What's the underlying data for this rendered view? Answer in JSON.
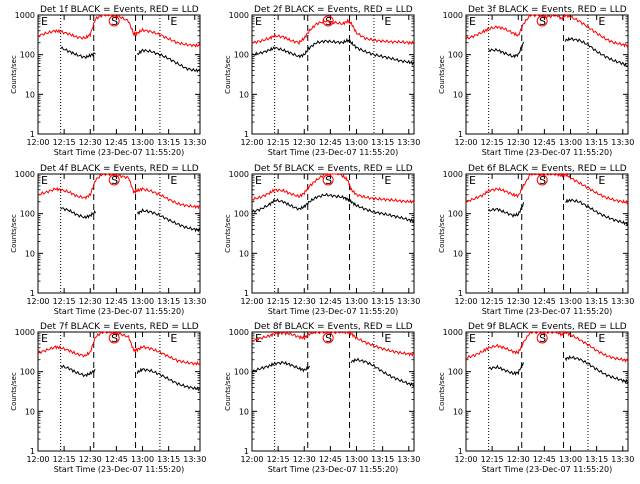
{
  "figure": {
    "xlabel": "Start Time (23-Dec-07 11:55:20)",
    "ylabel": "Counts/sec",
    "x_ticks": [
      "12:00",
      "12:15",
      "12:30",
      "12:45",
      "13:00",
      "13:15",
      "13:30"
    ],
    "y_ticks": [
      "1",
      "10",
      "100",
      "1000"
    ],
    "colors": {
      "events": "#000000",
      "lld": "#ff0000",
      "axes": "#000000",
      "background": "#ffffff"
    },
    "marker_labels": [
      "E",
      "S",
      "E"
    ]
  },
  "chart_data": [
    {
      "type": "line",
      "title": "Det 1f BLACK = Events, RED = LLD",
      "xlabel": "Start Time (23-Dec-07 11:55:20)",
      "ylabel": "Counts/sec",
      "log_y": true,
      "ylim": [
        1,
        1000
      ],
      "xlim": [
        "12:00",
        "13:33"
      ],
      "x": [
        "12:00",
        "12:05",
        "12:10",
        "12:13",
        "12:18",
        "12:22",
        "12:27",
        "12:30",
        "12:33",
        "12:37",
        "12:42",
        "12:47",
        "12:52",
        "12:55",
        "12:57",
        "13:00",
        "13:05",
        "13:10",
        "13:15",
        "13:20",
        "13:25",
        "13:30",
        "13:33"
      ],
      "series": [
        {
          "name": "LLD",
          "values": [
            300,
            350,
            400,
            380,
            330,
            280,
            260,
            320,
            800,
            1000,
            1000,
            900,
            700,
            330,
            350,
            420,
            380,
            320,
            250,
            200,
            180,
            170,
            170
          ]
        },
        {
          "name": "Events",
          "values": [
            null,
            null,
            null,
            150,
            120,
            100,
            85,
            95,
            110,
            null,
            null,
            null,
            null,
            null,
            100,
            130,
            120,
            100,
            80,
            60,
            45,
            40,
            40
          ]
        }
      ],
      "vlines_dotted": [
        "12:13",
        "13:10"
      ],
      "vlines_dashed": [
        "12:32",
        "12:56"
      ]
    },
    {
      "type": "line",
      "title": "Det 2f BLACK = Events, RED = LLD",
      "xlabel": "Start Time (23-Dec-07 11:55:20)",
      "ylabel": "Counts/sec",
      "log_y": true,
      "ylim": [
        1,
        1000
      ],
      "xlim": [
        "12:00",
        "13:33"
      ],
      "x": [
        "12:00",
        "12:05",
        "12:10",
        "12:13",
        "12:18",
        "12:22",
        "12:27",
        "12:30",
        "12:33",
        "12:37",
        "12:42",
        "12:47",
        "12:52",
        "12:55",
        "12:57",
        "13:00",
        "13:05",
        "13:10",
        "13:15",
        "13:20",
        "13:25",
        "13:30",
        "13:33"
      ],
      "series": [
        {
          "name": "LLD",
          "values": [
            200,
            220,
            260,
            300,
            280,
            230,
            200,
            260,
            400,
            600,
            700,
            650,
            600,
            700,
            620,
            350,
            260,
            230,
            220,
            210,
            210,
            200,
            200
          ]
        },
        {
          "name": "Events",
          "values": [
            100,
            110,
            130,
            150,
            130,
            110,
            90,
            100,
            150,
            200,
            220,
            210,
            200,
            230,
            200,
            150,
            120,
            100,
            90,
            80,
            70,
            65,
            60
          ]
        }
      ],
      "vlines_dotted": [
        "12:13",
        "13:10"
      ],
      "vlines_dashed": [
        "12:32",
        "12:56"
      ]
    },
    {
      "type": "line",
      "title": "Det 3f BLACK = Events, RED = LLD",
      "xlabel": "Start Time (23-Dec-07 11:55:20)",
      "ylabel": "Counts/sec",
      "log_y": true,
      "ylim": [
        1,
        1000
      ],
      "xlim": [
        "12:00",
        "13:33"
      ],
      "x": [
        "12:00",
        "12:05",
        "12:10",
        "12:13",
        "12:18",
        "12:22",
        "12:27",
        "12:30",
        "12:33",
        "12:37",
        "12:42",
        "12:47",
        "12:52",
        "12:55",
        "12:57",
        "13:00",
        "13:05",
        "13:10",
        "13:15",
        "13:20",
        "13:25",
        "13:30",
        "13:33"
      ],
      "series": [
        {
          "name": "LLD",
          "values": [
            250,
            300,
            380,
            450,
            500,
            450,
            350,
            300,
            600,
            1000,
            1000,
            900,
            1000,
            800,
            1000,
            900,
            700,
            500,
            350,
            250,
            200,
            180,
            170
          ]
        },
        {
          "name": "Events",
          "values": [
            null,
            null,
            null,
            130,
            130,
            110,
            90,
            100,
            200,
            null,
            null,
            null,
            null,
            null,
            230,
            250,
            230,
            180,
            120,
            90,
            70,
            60,
            50
          ]
        }
      ],
      "vlines_dotted": [
        "12:13",
        "13:10"
      ],
      "vlines_dashed": [
        "12:32",
        "12:56"
      ]
    },
    {
      "type": "line",
      "title": "Det 4f BLACK = Events, RED = LLD",
      "xlabel": "Start Time (23-Dec-07 11:55:20)",
      "ylabel": "Counts/sec",
      "log_y": true,
      "ylim": [
        1,
        1000
      ],
      "xlim": [
        "12:00",
        "13:33"
      ],
      "x": [
        "12:00",
        "12:05",
        "12:10",
        "12:13",
        "12:18",
        "12:22",
        "12:27",
        "12:30",
        "12:33",
        "12:37",
        "12:42",
        "12:47",
        "12:52",
        "12:55",
        "12:57",
        "13:00",
        "13:05",
        "13:10",
        "13:15",
        "13:20",
        "13:25",
        "13:30",
        "13:33"
      ],
      "series": [
        {
          "name": "LLD",
          "values": [
            300,
            350,
            420,
            400,
            350,
            280,
            250,
            300,
            700,
            1000,
            1000,
            900,
            800,
            350,
            380,
            420,
            370,
            300,
            230,
            180,
            160,
            150,
            150
          ]
        },
        {
          "name": "Events",
          "values": [
            null,
            null,
            null,
            140,
            120,
            95,
            80,
            90,
            110,
            null,
            null,
            null,
            null,
            null,
            100,
            120,
            110,
            90,
            70,
            55,
            45,
            40,
            38
          ]
        }
      ],
      "vlines_dotted": [
        "12:13",
        "13:10"
      ],
      "vlines_dashed": [
        "12:32",
        "12:56"
      ]
    },
    {
      "type": "line",
      "title": "Det 5f BLACK = Events, RED = LLD",
      "xlabel": "Start Time (23-Dec-07 11:55:20)",
      "ylabel": "Counts/sec",
      "log_y": true,
      "ylim": [
        1,
        1000
      ],
      "xlim": [
        "12:00",
        "13:33"
      ],
      "x": [
        "12:00",
        "12:05",
        "12:10",
        "12:13",
        "12:18",
        "12:22",
        "12:27",
        "12:30",
        "12:33",
        "12:37",
        "12:42",
        "12:47",
        "12:52",
        "12:55",
        "12:57",
        "13:00",
        "13:05",
        "13:10",
        "13:15",
        "13:20",
        "13:25",
        "13:30",
        "13:33"
      ],
      "series": [
        {
          "name": "LLD",
          "values": [
            230,
            260,
            330,
            400,
            380,
            320,
            270,
            330,
            500,
            700,
            1000,
            1200,
            900,
            700,
            400,
            300,
            260,
            240,
            230,
            220,
            210,
            200,
            200
          ]
        },
        {
          "name": "Events",
          "values": [
            110,
            130,
            170,
            220,
            200,
            160,
            130,
            150,
            200,
            260,
            300,
            280,
            260,
            230,
            200,
            160,
            130,
            110,
            100,
            90,
            80,
            70,
            65
          ]
        }
      ],
      "vlines_dotted": [
        "12:13",
        "13:10"
      ],
      "vlines_dashed": [
        "12:32",
        "12:56"
      ]
    },
    {
      "type": "line",
      "title": "Det 6f BLACK = Events, RED = LLD",
      "xlabel": "Start Time (23-Dec-07 11:55:20)",
      "ylabel": "Counts/sec",
      "log_y": true,
      "ylim": [
        1,
        1000
      ],
      "xlim": [
        "12:00",
        "13:33"
      ],
      "x": [
        "12:00",
        "12:05",
        "12:10",
        "12:13",
        "12:18",
        "12:22",
        "12:27",
        "12:30",
        "12:33",
        "12:37",
        "12:42",
        "12:47",
        "12:52",
        "12:55",
        "12:57",
        "13:00",
        "13:05",
        "13:10",
        "13:15",
        "13:20",
        "13:25",
        "13:30",
        "13:33"
      ],
      "series": [
        {
          "name": "LLD",
          "values": [
            200,
            240,
            300,
            380,
            420,
            380,
            300,
            280,
            500,
            1000,
            1000,
            1000,
            1000,
            900,
            1000,
            800,
            600,
            450,
            330,
            260,
            220,
            200,
            190
          ]
        },
        {
          "name": "Events",
          "values": [
            null,
            null,
            null,
            120,
            130,
            110,
            90,
            95,
            180,
            null,
            null,
            null,
            null,
            null,
            200,
            220,
            200,
            150,
            110,
            85,
            70,
            60,
            55
          ]
        }
      ],
      "vlines_dotted": [
        "12:13",
        "13:10"
      ],
      "vlines_dashed": [
        "12:32",
        "12:56"
      ]
    },
    {
      "type": "line",
      "title": "Det 7f BLACK = Events, RED = LLD",
      "xlabel": "Start Time (23-Dec-07 11:55:20)",
      "ylabel": "Counts/sec",
      "log_y": true,
      "ylim": [
        1,
        1000
      ],
      "xlim": [
        "12:00",
        "13:33"
      ],
      "x": [
        "12:00",
        "12:05",
        "12:10",
        "12:13",
        "12:18",
        "12:22",
        "12:27",
        "12:30",
        "12:33",
        "12:37",
        "12:42",
        "12:47",
        "12:52",
        "12:55",
        "12:57",
        "13:00",
        "13:05",
        "13:10",
        "13:15",
        "13:20",
        "13:25",
        "13:30",
        "13:33"
      ],
      "series": [
        {
          "name": "LLD",
          "values": [
            300,
            350,
            420,
            400,
            340,
            280,
            250,
            310,
            750,
            1000,
            1000,
            900,
            750,
            340,
            360,
            420,
            380,
            310,
            240,
            190,
            170,
            160,
            160
          ]
        },
        {
          "name": "Events",
          "values": [
            null,
            null,
            null,
            140,
            120,
            95,
            80,
            90,
            110,
            null,
            null,
            null,
            null,
            null,
            95,
            115,
            105,
            85,
            65,
            50,
            42,
            38,
            36
          ]
        }
      ],
      "vlines_dotted": [
        "12:13",
        "13:10"
      ],
      "vlines_dashed": [
        "12:32",
        "12:56"
      ]
    },
    {
      "type": "line",
      "title": "Det 8f BLACK = Events, RED = LLD",
      "xlabel": "Start Time (23-Dec-07 11:55:20)",
      "ylabel": "Counts/sec",
      "log_y": true,
      "ylim": [
        1,
        1000
      ],
      "xlim": [
        "12:00",
        "13:33"
      ],
      "x": [
        "12:00",
        "12:05",
        "12:10",
        "12:13",
        "12:18",
        "12:22",
        "12:27",
        "12:30",
        "12:33",
        "12:37",
        "12:42",
        "12:47",
        "12:52",
        "12:55",
        "12:57",
        "13:00",
        "13:05",
        "13:10",
        "13:15",
        "13:20",
        "13:25",
        "13:30",
        "13:33"
      ],
      "series": [
        {
          "name": "LLD",
          "values": [
            600,
            700,
            800,
            900,
            950,
            900,
            750,
            700,
            900,
            1000,
            1000,
            1000,
            1000,
            1000,
            900,
            700,
            550,
            450,
            380,
            330,
            300,
            280,
            270
          ]
        },
        {
          "name": "Events",
          "values": [
            100,
            120,
            140,
            160,
            170,
            150,
            120,
            110,
            130,
            null,
            null,
            null,
            null,
            null,
            180,
            200,
            180,
            140,
            100,
            75,
            60,
            50,
            45
          ]
        }
      ],
      "vlines_dotted": [
        "12:13",
        "13:10"
      ],
      "vlines_dashed": [
        "12:32",
        "12:56"
      ]
    },
    {
      "type": "line",
      "title": "Det 9f BLACK = Events, RED = LLD",
      "xlabel": "Start Time (23-Dec-07 11:55:20)",
      "ylabel": "Counts/sec",
      "log_y": true,
      "ylim": [
        1,
        1000
      ],
      "xlim": [
        "12:00",
        "13:33"
      ],
      "x": [
        "12:00",
        "12:05",
        "12:10",
        "12:13",
        "12:18",
        "12:22",
        "12:27",
        "12:30",
        "12:33",
        "12:37",
        "12:42",
        "12:47",
        "12:52",
        "12:55",
        "12:57",
        "13:00",
        "13:05",
        "13:10",
        "13:15",
        "13:20",
        "13:25",
        "13:30",
        "13:33"
      ],
      "series": [
        {
          "name": "LLD",
          "values": [
            220,
            260,
            330,
            400,
            450,
            400,
            320,
            300,
            550,
            1000,
            1000,
            1000,
            1000,
            850,
            1000,
            850,
            650,
            480,
            340,
            260,
            220,
            200,
            190
          ]
        },
        {
          "name": "Events",
          "values": [
            null,
            null,
            null,
            120,
            130,
            110,
            90,
            95,
            170,
            null,
            null,
            null,
            null,
            null,
            210,
            230,
            210,
            160,
            115,
            85,
            70,
            60,
            55
          ]
        }
      ],
      "vlines_dotted": [
        "12:13",
        "13:10"
      ],
      "vlines_dashed": [
        "12:32",
        "12:56"
      ]
    }
  ]
}
